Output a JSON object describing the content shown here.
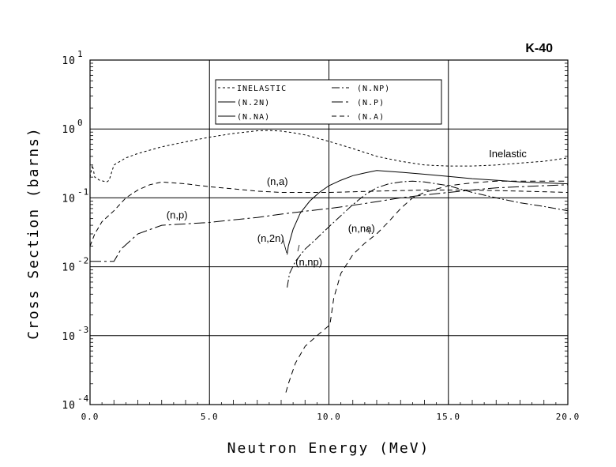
{
  "chart_data": {
    "type": "line",
    "title": "K-40",
    "xlabel": "Neutron Energy (MeV)",
    "ylabel": "Cross Section (barns)",
    "xlim": [
      0,
      20
    ],
    "ylim": [
      0.0001,
      10
    ],
    "yscale": "log",
    "grid": true,
    "xticks": [
      "0.0",
      "5.0",
      "10.0",
      "15.0",
      "20.0"
    ],
    "yticks": [
      {
        "base": "10",
        "exp": "-4"
      },
      {
        "base": "10",
        "exp": "-3"
      },
      {
        "base": "10",
        "exp": "-2"
      },
      {
        "base": "10",
        "exp": "-1"
      },
      {
        "base": "10",
        "exp": "0"
      },
      {
        "base": "10",
        "exp": "1"
      }
    ],
    "legend_position": "top-center",
    "series": [
      {
        "name": "INELASTIC",
        "dash": "3,3",
        "x": [
          0.0,
          0.1,
          0.2,
          0.4,
          0.7,
          0.8,
          1.0,
          1.5,
          2.0,
          3.0,
          4.0,
          5.0,
          6.0,
          7.0,
          7.5,
          8.0,
          8.5,
          9.0,
          10.0,
          11.0,
          12.0,
          13.0,
          14.0,
          15.0,
          16.0,
          17.0,
          18.0,
          19.0,
          20.0
        ],
        "y": [
          0.2,
          0.3,
          0.2,
          0.18,
          0.17,
          0.18,
          0.3,
          0.38,
          0.44,
          0.55,
          0.65,
          0.76,
          0.86,
          0.94,
          0.95,
          0.93,
          0.88,
          0.82,
          0.66,
          0.52,
          0.4,
          0.34,
          0.3,
          0.29,
          0.29,
          0.3,
          0.32,
          0.34,
          0.38
        ]
      },
      {
        "name": "(N,2N)",
        "dash": "",
        "x": [
          8.25,
          8.3,
          8.5,
          8.8,
          9.2,
          9.6,
          10.0,
          10.5,
          11.0,
          11.5,
          12.0,
          13.0,
          14.0,
          15.0,
          16.0,
          17.0,
          18.0,
          19.0,
          20.0
        ],
        "y": [
          0.015,
          0.02,
          0.035,
          0.06,
          0.09,
          0.12,
          0.15,
          0.18,
          0.21,
          0.23,
          0.25,
          0.235,
          0.22,
          0.205,
          0.19,
          0.18,
          0.17,
          0.165,
          0.16
        ]
      },
      {
        "name": "(N,NA)",
        "dash": "7,5",
        "x": [
          8.2,
          8.3,
          8.6,
          9.0,
          9.5,
          10.0,
          10.05,
          10.2,
          10.5,
          11.0,
          11.5,
          12.0,
          12.5,
          13.0,
          13.5,
          14.0,
          15.0,
          16.0,
          17.0,
          18.0,
          19.0,
          20.0
        ],
        "y": [
          0.00015,
          0.0002,
          0.0004,
          0.0007,
          0.001,
          0.0014,
          0.0015,
          0.0035,
          0.008,
          0.015,
          0.022,
          0.03,
          0.045,
          0.07,
          0.1,
          0.12,
          0.15,
          0.165,
          0.175,
          0.175,
          0.175,
          0.175
        ]
      },
      {
        "name": "(N.NP)",
        "dash": "10,3,2,3",
        "x": [
          8.25,
          8.35,
          8.6,
          9.0,
          9.5,
          10.0,
          10.5,
          11.0,
          11.5,
          12.0,
          12.5,
          13.0,
          13.5,
          14.0,
          15.0,
          16.0,
          17.0,
          18.0,
          19.0,
          20.0
        ],
        "y": [
          0.005,
          0.008,
          0.012,
          0.018,
          0.026,
          0.038,
          0.055,
          0.08,
          0.11,
          0.14,
          0.16,
          0.17,
          0.175,
          0.17,
          0.15,
          0.12,
          0.1,
          0.085,
          0.075,
          0.065
        ]
      },
      {
        "name": "(N.P)",
        "dash": "14,4,3,4",
        "x": [
          0.0,
          0.3,
          1.0,
          1.3,
          2.0,
          3.0,
          4.0,
          5.0,
          6.0,
          7.0,
          8.0,
          9.0,
          10.0,
          11.0,
          12.0,
          13.0,
          14.0,
          15.0,
          16.0,
          17.0,
          18.0,
          19.0,
          20.0
        ],
        "y": [
          0.012,
          0.012,
          0.012,
          0.018,
          0.03,
          0.04,
          0.042,
          0.044,
          0.048,
          0.052,
          0.058,
          0.064,
          0.07,
          0.078,
          0.088,
          0.1,
          0.11,
          0.12,
          0.13,
          0.14,
          0.145,
          0.15,
          0.155
        ]
      },
      {
        "name": "(N.A)",
        "dash": "6,4",
        "x": [
          0.0,
          0.2,
          0.5,
          1.0,
          1.5,
          2.0,
          2.5,
          3.0,
          4.0,
          5.0,
          6.0,
          7.0,
          8.0,
          9.0,
          10.0,
          12.0,
          14.0,
          16.0,
          18.0,
          20.0
        ],
        "y": [
          0.02,
          0.03,
          0.045,
          0.065,
          0.1,
          0.13,
          0.155,
          0.17,
          0.16,
          0.145,
          0.135,
          0.125,
          0.12,
          0.12,
          0.12,
          0.125,
          0.13,
          0.13,
          0.125,
          0.12
        ]
      }
    ],
    "annotations": [
      {
        "text": "Inelastic",
        "x": 16.7,
        "y": 0.39
      },
      {
        "text": "(n,a)",
        "x": 7.4,
        "y": 0.155
      },
      {
        "text": "(n,p)",
        "x": 3.2,
        "y": 0.05
      },
      {
        "text": "(n,2n)",
        "x": 7.0,
        "y": 0.023
      },
      {
        "text": "(n,na)",
        "x": 10.8,
        "y": 0.032
      },
      {
        "text": "(n,np)",
        "x": 8.6,
        "y": 0.0105
      }
    ],
    "legend": {
      "left": [
        "INELASTIC",
        "(N.2N)",
        "(N.NA)"
      ],
      "right": [
        "(N.NP)",
        "(N.P)",
        "(N.A)"
      ]
    }
  }
}
